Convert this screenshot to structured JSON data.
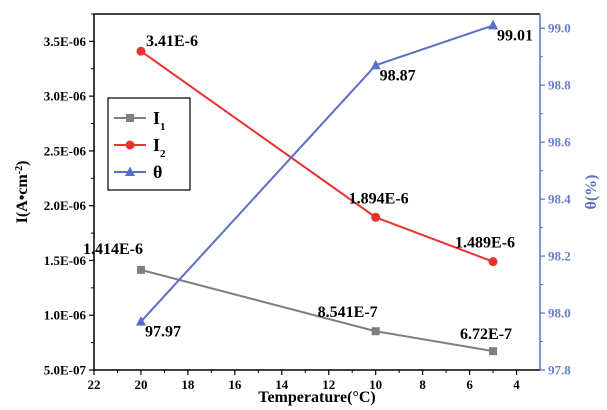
{
  "chart_data": {
    "type": "line",
    "xlabel": "Temperature(°C)",
    "ylabel_left_html": "I(A•cm<tspan baseline-shift=\"super\" font-size=\"10\">-2</tspan>)",
    "ylabel_left": "I(A•cm-2)",
    "ylabel_right": "θ(%)",
    "x_reversed": true,
    "xlim": [
      22,
      3
    ],
    "x_ticks": [
      "22",
      "20",
      "18",
      "16",
      "14",
      "12",
      "10",
      "8",
      "6",
      "4"
    ],
    "y_left_lim": [
      5e-07,
      3.75e-06
    ],
    "y_left_ticks": [
      "5.0E-07",
      "1.0E-06",
      "1.5E-06",
      "2.0E-06",
      "2.5E-06",
      "3.0E-06",
      "3.5E-06"
    ],
    "y_right_lim": [
      97.8,
      99.05
    ],
    "y_right_ticks": [
      "97.8",
      "98.0",
      "98.2",
      "98.4",
      "98.6",
      "98.8",
      "99.0"
    ],
    "legend_position": "left-center",
    "series": [
      {
        "name": "I",
        "name_sub": "1",
        "axis": "left",
        "color": "#7f7f7f",
        "marker": "square",
        "x": [
          20,
          10,
          5
        ],
        "y": [
          1.414e-06,
          8.541e-07,
          6.72e-07
        ],
        "labels": [
          "1.414E-6",
          "8.541E-7",
          "6.72E-7"
        ]
      },
      {
        "name": "I",
        "name_sub": "2",
        "axis": "left",
        "color": "#e8322f",
        "marker": "circle",
        "x": [
          20,
          10,
          5
        ],
        "y": [
          3.41e-06,
          1.894e-06,
          1.489e-06
        ],
        "labels": [
          "3.41E-6",
          "1.894E-6",
          "1.489E-6"
        ]
      },
      {
        "name": "θ",
        "name_sub": "",
        "axis": "right",
        "color": "#5a6fc8",
        "marker": "triangle",
        "x": [
          20,
          10,
          5
        ],
        "y": [
          97.97,
          98.87,
          99.01
        ],
        "labels": [
          "97.97",
          "98.87",
          "99.01"
        ]
      }
    ]
  }
}
